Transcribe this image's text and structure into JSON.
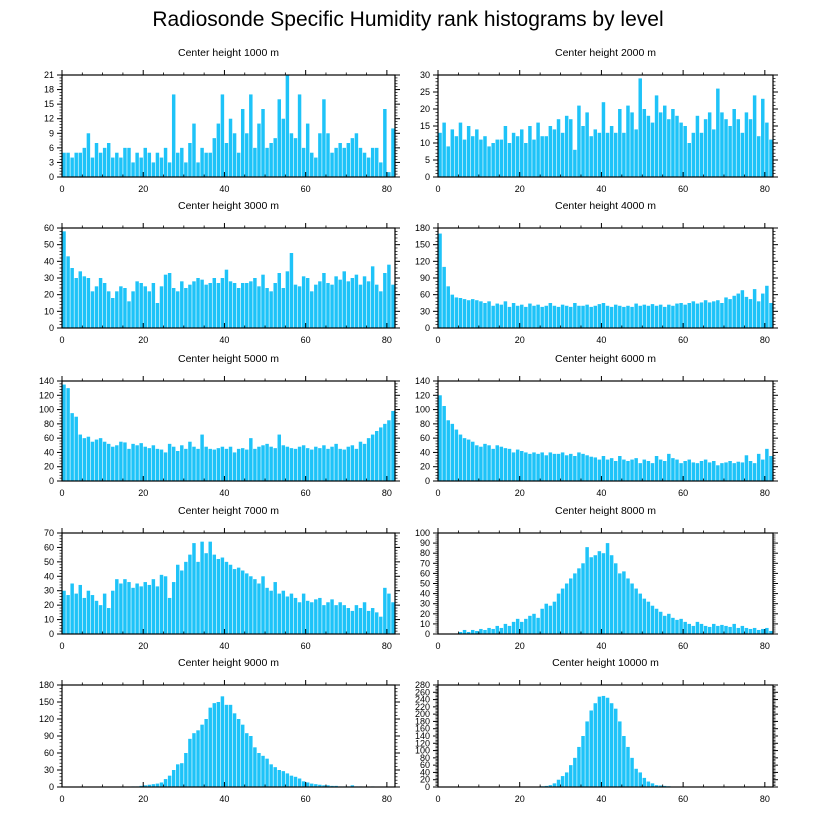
{
  "title": "Radiosonde Specific Humidity rank histograms by level",
  "bar_color": "#1ec3f8",
  "chart_data": [
    {
      "type": "bar",
      "title": "Center height 1000 m",
      "xlim": [
        0,
        82
      ],
      "ylim": [
        0,
        21
      ],
      "xticks": [
        0,
        20,
        40,
        60,
        80
      ],
      "yticks": [
        0,
        3,
        6,
        9,
        12,
        15,
        18,
        21
      ],
      "values": [
        5,
        5,
        4,
        5,
        5,
        6,
        9,
        4,
        7,
        5,
        6,
        7,
        4,
        5,
        4,
        6,
        6,
        3,
        5,
        4,
        6,
        5,
        3,
        5,
        4,
        6,
        3,
        17,
        5,
        6,
        3,
        7,
        11,
        3,
        6,
        5,
        5,
        8,
        11,
        17,
        7,
        12,
        9,
        5,
        14,
        9,
        17,
        6,
        11,
        14,
        6,
        7,
        8,
        16,
        12,
        21,
        9,
        8,
        17,
        6,
        11,
        5,
        4,
        9,
        16,
        9,
        5,
        6,
        7,
        6,
        7,
        8,
        9,
        6,
        5,
        4,
        6,
        6,
        3,
        14,
        1,
        10
      ]
    },
    {
      "type": "bar",
      "title": "Center height 2000 m",
      "xlim": [
        0,
        82
      ],
      "ylim": [
        0,
        30
      ],
      "xticks": [
        0,
        20,
        40,
        60,
        80
      ],
      "yticks": [
        0,
        5,
        10,
        15,
        20,
        25,
        30
      ],
      "values": [
        13,
        16,
        9,
        14,
        12,
        16,
        11,
        15,
        12,
        14,
        11,
        12,
        9,
        10,
        11,
        11,
        15,
        10,
        13,
        12,
        14,
        10,
        15,
        11,
        16,
        12,
        12,
        15,
        14,
        17,
        13,
        18,
        17,
        8,
        21,
        15,
        19,
        12,
        14,
        13,
        22,
        13,
        15,
        13,
        20,
        13,
        21,
        19,
        14,
        29,
        20,
        18,
        16,
        24,
        19,
        21,
        17,
        20,
        18,
        16,
        15,
        10,
        13,
        18,
        13,
        17,
        19,
        14,
        26,
        19,
        17,
        15,
        20,
        17,
        13,
        19,
        17,
        24,
        12,
        23,
        16,
        11
      ]
    },
    {
      "type": "bar",
      "title": "Center height 3000 m",
      "xlim": [
        0,
        82
      ],
      "ylim": [
        0,
        60
      ],
      "xticks": [
        0,
        20,
        40,
        60,
        80
      ],
      "yticks": [
        0,
        10,
        20,
        30,
        40,
        50,
        60
      ],
      "values": [
        58,
        43,
        36,
        30,
        34,
        31,
        30,
        22,
        25,
        30,
        27,
        22,
        18,
        22,
        25,
        24,
        16,
        22,
        28,
        27,
        25,
        22,
        27,
        15,
        25,
        32,
        33,
        24,
        22,
        28,
        24,
        26,
        28,
        30,
        29,
        26,
        27,
        30,
        27,
        30,
        35,
        28,
        27,
        24,
        27,
        27,
        28,
        30,
        25,
        32,
        24,
        22,
        27,
        33,
        24,
        34,
        45,
        26,
        25,
        31,
        30,
        22,
        26,
        28,
        33,
        27,
        26,
        31,
        29,
        34,
        28,
        30,
        32,
        26,
        31,
        28,
        37,
        26,
        22,
        33,
        38,
        26
      ]
    },
    {
      "type": "bar",
      "title": "Center height 4000 m",
      "xlim": [
        0,
        82
      ],
      "ylim": [
        0,
        180
      ],
      "xticks": [
        0,
        20,
        40,
        60,
        80
      ],
      "yticks": [
        0,
        30,
        60,
        90,
        120,
        150,
        180
      ],
      "values": [
        170,
        110,
        75,
        60,
        55,
        54,
        52,
        50,
        52,
        50,
        48,
        45,
        48,
        40,
        44,
        42,
        48,
        38,
        45,
        40,
        42,
        38,
        44,
        40,
        42,
        38,
        40,
        45,
        40,
        38,
        42,
        40,
        38,
        45,
        40,
        40,
        42,
        38,
        40,
        43,
        45,
        40,
        38,
        42,
        40,
        38,
        40,
        38,
        44,
        40,
        42,
        40,
        43,
        40,
        42,
        38,
        42,
        40,
        44,
        45,
        42,
        45,
        48,
        44,
        46,
        50,
        46,
        48,
        50,
        45,
        55,
        52,
        58,
        62,
        68,
        56,
        52,
        70,
        48,
        62,
        76,
        45
      ]
    },
    {
      "type": "bar",
      "title": "Center height 5000 m",
      "xlim": [
        0,
        82
      ],
      "ylim": [
        0,
        140
      ],
      "xticks": [
        0,
        20,
        40,
        60,
        80
      ],
      "yticks": [
        0,
        20,
        40,
        60,
        80,
        100,
        120,
        140
      ],
      "values": [
        135,
        130,
        95,
        90,
        65,
        60,
        62,
        55,
        58,
        60,
        55,
        52,
        48,
        50,
        55,
        54,
        45,
        52,
        50,
        53,
        48,
        46,
        50,
        45,
        44,
        40,
        52,
        48,
        42,
        50,
        45,
        55,
        48,
        45,
        65,
        48,
        45,
        44,
        46,
        48,
        45,
        48,
        40,
        45,
        46,
        44,
        60,
        45,
        48,
        50,
        52,
        48,
        46,
        65,
        50,
        48,
        46,
        45,
        48,
        50,
        46,
        44,
        48,
        46,
        50,
        45,
        48,
        52,
        45,
        44,
        48,
        50,
        45,
        55,
        52,
        60,
        65,
        70,
        75,
        80,
        85,
        98
      ]
    },
    {
      "type": "bar",
      "title": "Center height 6000 m",
      "xlim": [
        0,
        82
      ],
      "ylim": [
        0,
        140
      ],
      "xticks": [
        0,
        20,
        40,
        60,
        80
      ],
      "yticks": [
        0,
        20,
        40,
        60,
        80,
        100,
        120,
        140
      ],
      "values": [
        120,
        105,
        85,
        80,
        72,
        65,
        60,
        58,
        55,
        50,
        48,
        52,
        50,
        45,
        50,
        48,
        46,
        45,
        40,
        44,
        42,
        40,
        38,
        40,
        38,
        40,
        36,
        40,
        38,
        38,
        40,
        36,
        38,
        35,
        40,
        38,
        36,
        34,
        33,
        30,
        35,
        30,
        32,
        28,
        35,
        30,
        28,
        30,
        32,
        25,
        30,
        28,
        25,
        35,
        30,
        28,
        38,
        32,
        30,
        25,
        28,
        30,
        26,
        25,
        28,
        30,
        26,
        28,
        22,
        25,
        26,
        28,
        25,
        27,
        26,
        36,
        28,
        25,
        38,
        30,
        45,
        35
      ]
    },
    {
      "type": "bar",
      "title": "Center height 7000 m",
      "xlim": [
        0,
        82
      ],
      "ylim": [
        0,
        70
      ],
      "xticks": [
        0,
        20,
        40,
        60,
        80
      ],
      "yticks": [
        0,
        10,
        20,
        30,
        40,
        50,
        60,
        70
      ],
      "values": [
        30,
        27,
        35,
        28,
        34,
        25,
        30,
        27,
        23,
        20,
        28,
        18,
        30,
        38,
        35,
        38,
        36,
        32,
        35,
        33,
        36,
        34,
        38,
        33,
        41,
        40,
        25,
        36,
        48,
        44,
        50,
        55,
        63,
        50,
        64,
        56,
        64,
        55,
        52,
        53,
        50,
        48,
        45,
        46,
        44,
        42,
        40,
        38,
        35,
        40,
        32,
        30,
        36,
        28,
        30,
        26,
        28,
        25,
        22,
        28,
        23,
        22,
        24,
        25,
        20,
        22,
        24,
        20,
        22,
        20,
        18,
        16,
        20,
        18,
        22,
        16,
        18,
        15,
        12,
        32,
        28,
        22
      ]
    },
    {
      "type": "bar",
      "title": "Center height 8000 m",
      "xlim": [
        0,
        82
      ],
      "ylim": [
        0,
        100
      ],
      "xticks": [
        0,
        20,
        40,
        60,
        80
      ],
      "yticks": [
        0,
        10,
        20,
        30,
        40,
        50,
        60,
        70,
        80,
        90,
        100
      ],
      "values": [
        0,
        0,
        0,
        0,
        0,
        2,
        4,
        2,
        4,
        3,
        5,
        4,
        6,
        5,
        8,
        6,
        10,
        8,
        12,
        15,
        12,
        15,
        18,
        20,
        16,
        25,
        30,
        28,
        32,
        40,
        45,
        50,
        55,
        60,
        65,
        70,
        86,
        76,
        78,
        82,
        80,
        90,
        78,
        70,
        60,
        62,
        55,
        50,
        45,
        40,
        35,
        32,
        28,
        25,
        22,
        18,
        20,
        16,
        14,
        15,
        12,
        10,
        8,
        12,
        10,
        8,
        7,
        10,
        8,
        9,
        8,
        7,
        10,
        6,
        8,
        6,
        5,
        6,
        4,
        5,
        6,
        3
      ]
    },
    {
      "type": "bar",
      "title": "Center height 9000 m",
      "xlim": [
        0,
        82
      ],
      "ylim": [
        0,
        180
      ],
      "xticks": [
        0,
        20,
        40,
        60,
        80
      ],
      "yticks": [
        0,
        30,
        60,
        90,
        120,
        150,
        180
      ],
      "values": [
        0,
        0,
        0,
        0,
        0,
        0,
        0,
        0,
        0,
        0,
        0,
        0,
        0,
        0,
        0,
        0,
        0,
        1,
        1,
        2,
        3,
        4,
        5,
        6,
        8,
        14,
        20,
        30,
        40,
        42,
        60,
        85,
        95,
        100,
        110,
        120,
        140,
        148,
        150,
        160,
        145,
        145,
        130,
        120,
        110,
        95,
        90,
        70,
        60,
        55,
        50,
        40,
        35,
        30,
        28,
        24,
        20,
        18,
        15,
        10,
        8,
        6,
        5,
        4,
        3,
        3,
        2,
        2,
        1,
        1,
        1,
        3,
        1,
        1,
        0,
        0,
        1,
        0,
        0,
        0,
        0,
        0
      ]
    },
    {
      "type": "bar",
      "title": "Center height 10000 m",
      "xlim": [
        0,
        82
      ],
      "ylim": [
        0,
        280
      ],
      "xticks": [
        0,
        20,
        40,
        60,
        80
      ],
      "yticks": [
        0,
        20,
        40,
        60,
        80,
        100,
        120,
        140,
        160,
        180,
        200,
        220,
        240,
        260,
        280
      ],
      "values": [
        0,
        0,
        0,
        0,
        0,
        0,
        0,
        0,
        0,
        0,
        0,
        0,
        0,
        0,
        0,
        0,
        0,
        0,
        0,
        0,
        0,
        0,
        0,
        0,
        1,
        2,
        3,
        5,
        10,
        20,
        30,
        40,
        60,
        80,
        110,
        140,
        180,
        210,
        230,
        248,
        250,
        245,
        230,
        215,
        180,
        140,
        110,
        80,
        50,
        40,
        25,
        15,
        10,
        5,
        4,
        3,
        2,
        1,
        1,
        1,
        0,
        0,
        0,
        0,
        0,
        0,
        0,
        0,
        0,
        0,
        0,
        0,
        0,
        0,
        0,
        0,
        0,
        0,
        0,
        0,
        0,
        0
      ]
    }
  ]
}
